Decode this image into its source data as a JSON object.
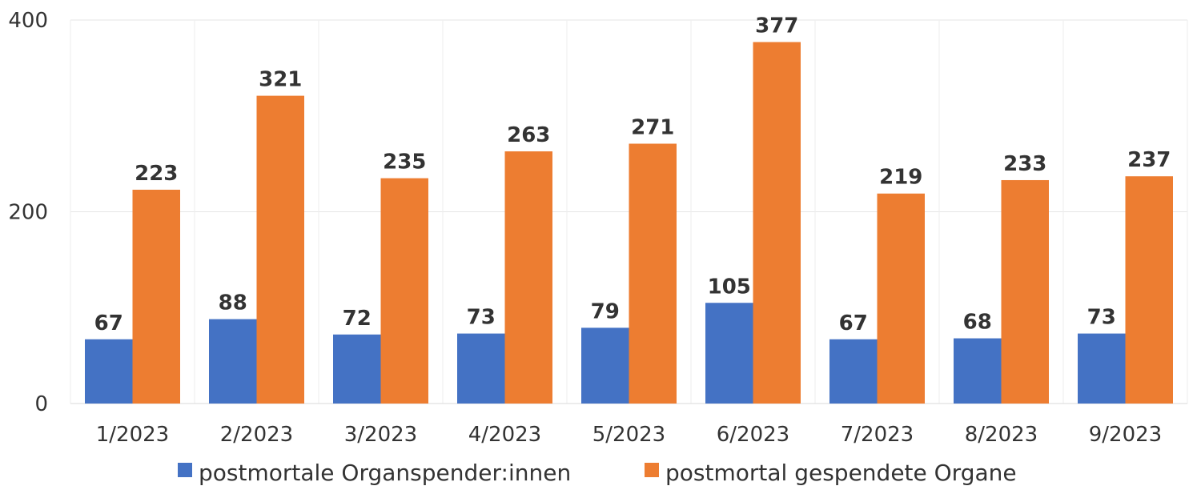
{
  "chart_data": {
    "type": "bar",
    "categories": [
      "1/2023",
      "2/2023",
      "3/2023",
      "4/2023",
      "5/2023",
      "6/2023",
      "7/2023",
      "8/2023",
      "9/2023"
    ],
    "series": [
      {
        "name": "postmortale Organspender:innen",
        "values": [
          67,
          88,
          72,
          73,
          79,
          105,
          67,
          68,
          73
        ],
        "color": "#4472C4"
      },
      {
        "name": "postmortal gespendete Organe",
        "values": [
          223,
          321,
          235,
          263,
          271,
          377,
          219,
          233,
          237
        ],
        "color": "#ED7D31"
      }
    ],
    "yticks": [
      0,
      200,
      400
    ],
    "ylim": [
      0,
      400
    ],
    "grid": true,
    "data_labels": true,
    "legend_position": "bottom"
  }
}
